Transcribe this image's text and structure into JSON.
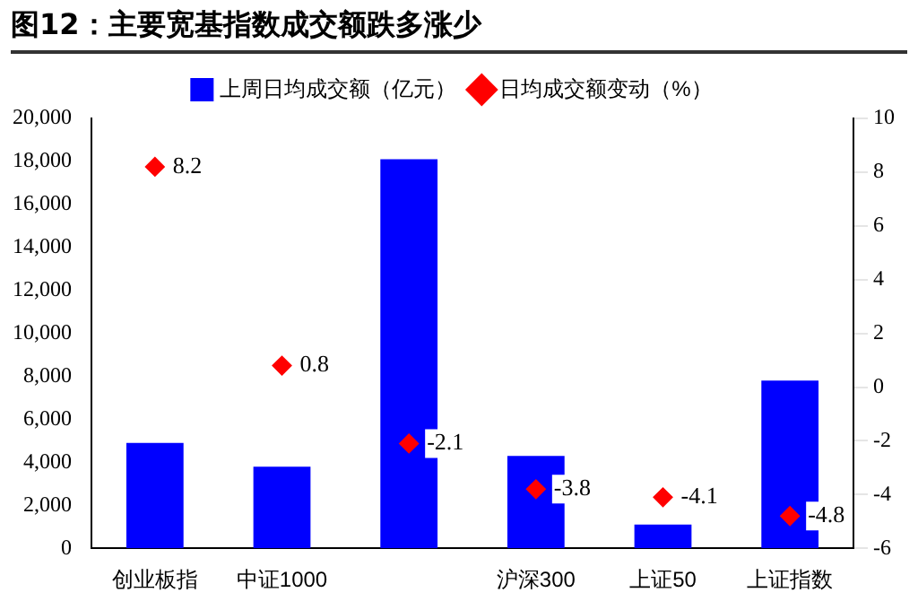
{
  "chart_data": {
    "type": "bar",
    "title": "图12：主要宽基指数成交额跌多涨少",
    "categories": [
      "创业板指",
      "中证1000",
      null,
      "沪深300",
      "上证50",
      "上证指数"
    ],
    "series": [
      {
        "name": "上周日均成交额（亿元）",
        "color": "#0000ff",
        "values": [
          4900,
          3800,
          18100,
          4300,
          1100,
          7800
        ]
      },
      {
        "name": "日均成交额变动（%）",
        "type": "scatter",
        "axis": "y2",
        "color": "#ff0000",
        "marker": "diamond",
        "values": [
          8.2,
          0.8,
          -2.1,
          -3.8,
          -4.1,
          -4.8
        ],
        "value_labels": [
          "8.2",
          "0.8",
          "-2.1",
          "-3.8",
          "-4.1",
          "-4.8"
        ]
      }
    ],
    "ylim": [
      0,
      20000
    ],
    "yticks": [
      0,
      {
        "value": 2000,
        "label": "2,000"
      },
      {
        "value": 4000,
        "label": "4,000"
      },
      {
        "value": 6000,
        "label": "6,000"
      },
      {
        "value": 8000,
        "label": "8,000"
      },
      {
        "value": 10000,
        "label": "10,000"
      },
      {
        "value": 12000,
        "label": "12,000"
      },
      {
        "value": 14000,
        "label": "14,000"
      },
      {
        "value": 16000,
        "label": "16,000"
      },
      {
        "value": 18000,
        "label": "18,000"
      },
      {
        "value": 20000,
        "label": "20,000"
      }
    ],
    "y2lim": [
      -6,
      10
    ],
    "y2ticks": [
      -6,
      -4,
      -2,
      0,
      2,
      4,
      6,
      8,
      10
    ],
    "grid": false,
    "legend": "top"
  }
}
